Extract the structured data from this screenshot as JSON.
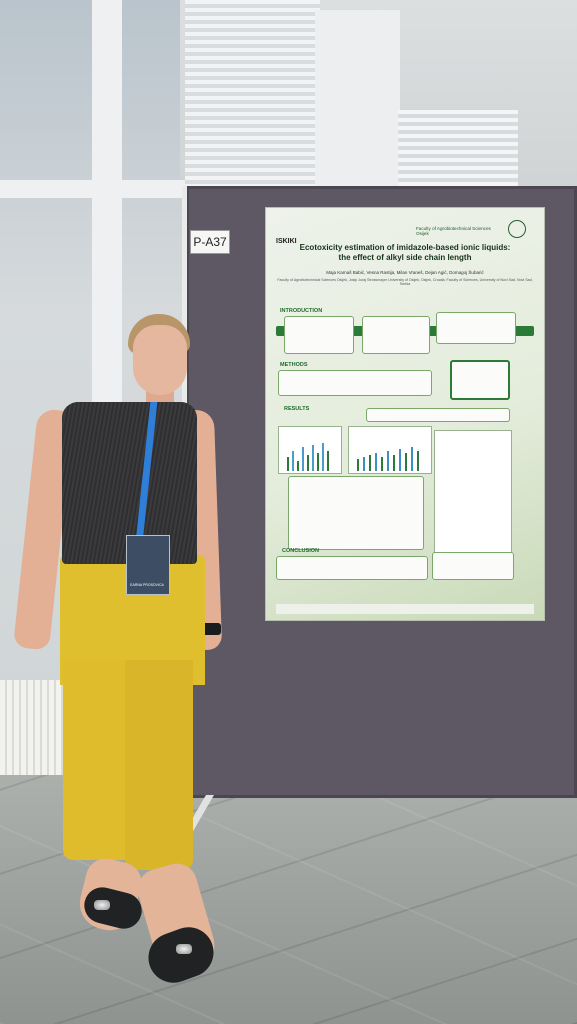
{
  "scene": {
    "stand_label": "P-A37"
  },
  "poster": {
    "logo_left": "ISKIKI",
    "logo_right": "Faculty of Agrobiotechnical Sciences Osijek",
    "title_line1": "Ecotoxicity estimation of imidazole-based ionic liquids:",
    "title_line2": "the effect of alkyl side chain length",
    "authors": "Maja Karnaš Babić, Vesna Rastija, Milan Vraneš, Dejan Agić, Domagoj Šubarić",
    "affiliation": "Faculty of Agrobiotechnical Sciences Osijek, Josip Juraj Strossmayer University of Osijek, Osijek, Croatia; Faculty of Sciences, University of Novi Sad, Novi Sad, Serbia",
    "sections": {
      "introduction": "INTRODUCTION",
      "methods": "METHODS",
      "results": "RESULTS",
      "conclusion": "CONCLUSION"
    }
  },
  "badge": {
    "text": "EARNA PROSOVICA"
  },
  "colors": {
    "board": "#5d5863",
    "poster_green": "#2b7a37",
    "pants": "#e0bf2f",
    "lanyard": "#2f7fd8"
  }
}
